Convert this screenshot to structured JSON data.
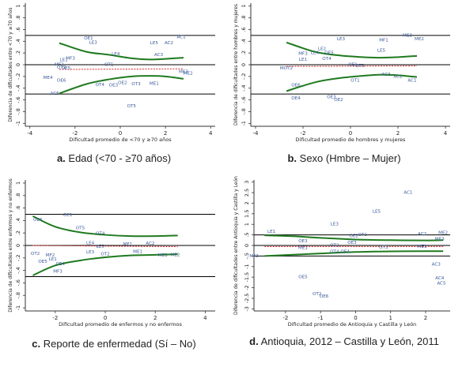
{
  "captions": [
    {
      "letter": "a.",
      "text": "Edad (<70 - ≥70 años)"
    },
    {
      "letter": "b.",
      "text": "Sexo (Hmbre – Mujer)"
    },
    {
      "letter": "c.",
      "text": "Reporte de enfermedad (Sí – No)"
    },
    {
      "letter": "d.",
      "text": "Antioquia, 2012 – Castilla y León, 2011"
    }
  ],
  "colors": {
    "fit_line": "#1f7a1f",
    "zero_dashed": "#d62728",
    "point_label": "#3b5b9a",
    "axis": "#333333",
    "reference_line": "#000000"
  },
  "chart_data": [
    {
      "type": "scatter",
      "title": "",
      "xlabel": "Dificultad promedio de <70 y ≥70 años",
      "ylabel": "Diferencia de dificultades entre <70 y ≥70 años",
      "xlim": [
        -4.2,
        4.2
      ],
      "ylim": [
        -1.05,
        1.05
      ],
      "xticks": [
        -4,
        -2,
        0,
        2,
        4
      ],
      "yticks": [
        -1,
        -0.8,
        -0.6,
        -0.4,
        -0.2,
        0,
        0.2,
        0.4,
        0.6,
        0.8,
        1
      ],
      "ytick_labels": [
        "-1",
        "-.8",
        "-.6",
        "-.4",
        "-.2",
        "0",
        ".2",
        ".4",
        ".6",
        ".8",
        "1"
      ],
      "reference_lines": [
        0.5,
        0,
        -0.5
      ],
      "upper_band": [
        [
          -2.7,
          0.37
        ],
        [
          -1.5,
          0.22
        ],
        [
          -0.5,
          0.17
        ],
        [
          0.5,
          0.11
        ],
        [
          1.3,
          0.09
        ],
        [
          2.0,
          0.1
        ],
        [
          2.8,
          0.12
        ]
      ],
      "lower_band": [
        [
          -2.7,
          -0.49
        ],
        [
          -1.5,
          -0.33
        ],
        [
          -0.5,
          -0.25
        ],
        [
          0.5,
          -0.2
        ],
        [
          1.3,
          -0.19
        ],
        [
          2.0,
          -0.2
        ],
        [
          2.8,
          -0.24
        ]
      ],
      "dashed_fit": [
        [
          -2.7,
          -0.08
        ],
        [
          2.8,
          -0.07
        ]
      ],
      "points": [
        {
          "label": "AC1",
          "x": 2.7,
          "y": 0.47
        },
        {
          "label": "LE5",
          "x": 1.5,
          "y": 0.37
        },
        {
          "label": "AC2",
          "x": 2.15,
          "y": 0.37
        },
        {
          "label": "AC3",
          "x": 1.7,
          "y": 0.17
        },
        {
          "label": "LE3",
          "x": -1.2,
          "y": 0.38
        },
        {
          "label": "OE1",
          "x": -1.4,
          "y": 0.45
        },
        {
          "label": "LE4",
          "x": -0.2,
          "y": 0.18
        },
        {
          "label": "MF3",
          "x": -2.2,
          "y": 0.11
        },
        {
          "label": "LE1",
          "x": -2.5,
          "y": 0.08
        },
        {
          "label": "MF2",
          "x": -2.7,
          "y": 0.0
        },
        {
          "label": "OT2",
          "x": -2.6,
          "y": -0.05
        },
        {
          "label": "OE5",
          "x": -2.4,
          "y": -0.06
        },
        {
          "label": "OT1",
          "x": -0.5,
          "y": 0.0
        },
        {
          "label": "ME2",
          "x": 3.0,
          "y": -0.15
        },
        {
          "label": "ME1",
          "x": 1.5,
          "y": -0.32
        },
        {
          "label": "OT3",
          "x": 0.7,
          "y": -0.33
        },
        {
          "label": "OE2",
          "x": 0.1,
          "y": -0.31
        },
        {
          "label": "OE3",
          "x": -0.3,
          "y": -0.35
        },
        {
          "label": "OT4",
          "x": -0.9,
          "y": -0.34
        },
        {
          "label": "ME4",
          "x": -3.2,
          "y": -0.22
        },
        {
          "label": "OE6",
          "x": -2.6,
          "y": -0.27
        },
        {
          "label": "AC5",
          "x": -2.9,
          "y": -0.49
        },
        {
          "label": "OT5",
          "x": 0.5,
          "y": -0.71
        },
        {
          "label": "ME3",
          "x": 2.8,
          "y": -0.12
        }
      ]
    },
    {
      "type": "scatter",
      "title": "",
      "xlabel": "Dificultad promedio de hombres y mujeres",
      "ylabel": "Diferencia de dificultades entre hombres y mujeres",
      "xlim": [
        -4.2,
        4.2
      ],
      "ylim": [
        -1.05,
        1.05
      ],
      "xticks": [
        -4,
        -2,
        0,
        2,
        4
      ],
      "yticks": [
        -1,
        -0.8,
        -0.6,
        -0.4,
        -0.2,
        0,
        0.2,
        0.4,
        0.6,
        0.8,
        1
      ],
      "ytick_labels": [
        "-1",
        "-.8",
        "-.6",
        "-.4",
        "-.2",
        "0",
        ".2",
        ".4",
        ".6",
        ".8",
        "1"
      ],
      "reference_lines": [
        0.5,
        0,
        -0.5
      ],
      "upper_band": [
        [
          -2.7,
          0.38
        ],
        [
          -1.5,
          0.22
        ],
        [
          -0.5,
          0.16
        ],
        [
          0.5,
          0.13
        ],
        [
          1.3,
          0.12
        ],
        [
          2.0,
          0.13
        ],
        [
          2.8,
          0.15
        ]
      ],
      "lower_band": [
        [
          -2.7,
          -0.45
        ],
        [
          -1.5,
          -0.3
        ],
        [
          -0.5,
          -0.23
        ],
        [
          0.5,
          -0.19
        ],
        [
          1.3,
          -0.17
        ],
        [
          2.0,
          -0.18
        ],
        [
          2.8,
          -0.21
        ]
      ],
      "dashed_fit": [
        [
          -2.7,
          -0.03
        ],
        [
          2.8,
          -0.02
        ]
      ],
      "points": [
        {
          "label": "ME3",
          "x": 2.4,
          "y": 0.5
        },
        {
          "label": "ME2",
          "x": 2.9,
          "y": 0.44
        },
        {
          "label": "MF1",
          "x": 1.4,
          "y": 0.42
        },
        {
          "label": "LE3",
          "x": -0.4,
          "y": 0.44
        },
        {
          "label": "LE5",
          "x": 1.3,
          "y": 0.24
        },
        {
          "label": "LE2",
          "x": -1.2,
          "y": 0.27
        },
        {
          "label": "MF3",
          "x": -2.0,
          "y": 0.19
        },
        {
          "label": "LE4",
          "x": -1.5,
          "y": 0.2
        },
        {
          "label": "LE1",
          "x": -2.0,
          "y": 0.09
        },
        {
          "label": "OT4",
          "x": -1.0,
          "y": 0.1
        },
        {
          "label": "OE5",
          "x": -0.9,
          "y": 0.2
        },
        {
          "label": "MOT2",
          "x": -2.7,
          "y": -0.06
        },
        {
          "label": "OE1",
          "x": 0.1,
          "y": 0.0
        },
        {
          "label": "OT3",
          "x": 0.4,
          "y": -0.02
        },
        {
          "label": "AC3",
          "x": 1.5,
          "y": -0.17
        },
        {
          "label": "AC2",
          "x": 2.0,
          "y": -0.2
        },
        {
          "label": "AC1",
          "x": 2.6,
          "y": -0.27
        },
        {
          "label": "OT1",
          "x": 0.2,
          "y": -0.27
        },
        {
          "label": "OE6",
          "x": -2.3,
          "y": -0.35
        },
        {
          "label": "OE4",
          "x": -2.3,
          "y": -0.57
        },
        {
          "label": "OE3",
          "x": -0.8,
          "y": -0.55
        },
        {
          "label": "OE2",
          "x": -0.5,
          "y": -0.6
        }
      ]
    },
    {
      "type": "scatter",
      "title": "",
      "xlabel": "Dificultad promedio de enfermos y no enfermos",
      "ylabel": "Diferencia de dificultades entre enfermos y no enfermos",
      "xlim": [
        -3.2,
        4.4
      ],
      "ylim": [
        -1.05,
        1.05
      ],
      "xticks": [
        -2,
        0,
        2,
        4
      ],
      "yticks": [
        -1,
        -0.8,
        -0.6,
        -0.4,
        -0.2,
        0,
        0.2,
        0.4,
        0.6,
        0.8,
        1
      ],
      "ytick_labels": [
        "-1",
        "-.8",
        "-.6",
        "-.4",
        "-.2",
        "0",
        ".2",
        ".4",
        ".6",
        ".8",
        "1"
      ],
      "reference_lines": [
        0.5,
        0,
        -0.5
      ],
      "upper_band": [
        [
          -2.9,
          0.47
        ],
        [
          -2.0,
          0.3
        ],
        [
          -1.0,
          0.21
        ],
        [
          0.0,
          0.17
        ],
        [
          1.0,
          0.15
        ],
        [
          2.0,
          0.15
        ],
        [
          2.9,
          0.16
        ]
      ],
      "lower_band": [
        [
          -2.9,
          -0.48
        ],
        [
          -2.0,
          -0.32
        ],
        [
          -1.0,
          -0.24
        ],
        [
          0.0,
          -0.19
        ],
        [
          1.0,
          -0.16
        ],
        [
          2.0,
          -0.15
        ],
        [
          2.9,
          -0.14
        ]
      ],
      "dashed_fit": [
        [
          -2.9,
          0.0
        ],
        [
          2.9,
          -0.02
        ]
      ],
      "points": [
        {
          "label": "OE1",
          "x": -1.5,
          "y": 0.49
        },
        {
          "label": "OE6",
          "x": -2.7,
          "y": 0.41
        },
        {
          "label": "OT5",
          "x": -1.0,
          "y": 0.28
        },
        {
          "label": "OT4",
          "x": -0.2,
          "y": 0.19
        },
        {
          "label": "LE4",
          "x": -0.6,
          "y": 0.04
        },
        {
          "label": "LE5",
          "x": -0.2,
          "y": -0.02
        },
        {
          "label": "MF1",
          "x": 0.9,
          "y": 0.02
        },
        {
          "label": "AC2",
          "x": 1.8,
          "y": 0.03
        },
        {
          "label": "ME1",
          "x": 1.3,
          "y": -0.1
        },
        {
          "label": "LE3",
          "x": -0.6,
          "y": -0.11
        },
        {
          "label": "OT2",
          "x": 0.0,
          "y": -0.14
        },
        {
          "label": "ME3",
          "x": 2.3,
          "y": -0.16
        },
        {
          "label": "ME2",
          "x": 2.8,
          "y": -0.15
        },
        {
          "label": "OT2",
          "x": -2.8,
          "y": -0.13
        },
        {
          "label": "MF2",
          "x": -2.2,
          "y": -0.16
        },
        {
          "label": "LE1",
          "x": -2.1,
          "y": -0.22
        },
        {
          "label": "OE5",
          "x": -2.5,
          "y": -0.26
        },
        {
          "label": "OE4",
          "x": -1.8,
          "y": -0.3
        },
        {
          "label": "MF3",
          "x": -1.9,
          "y": -0.42
        }
      ]
    },
    {
      "type": "scatter",
      "title": "",
      "xlabel": "Dificultad promedio de Antioquia y Castilla y León",
      "ylabel": "Diferencia de dificultades entre Antioquia y Castilla y León",
      "xlim": [
        -2.9,
        2.7
      ],
      "ylim": [
        -3.1,
        3.1
      ],
      "xticks": [
        -2,
        -1,
        0,
        1,
        2
      ],
      "yticks": [
        -3,
        -2.5,
        -2,
        -1.5,
        -1,
        -0.5,
        0,
        0.5,
        1,
        1.5,
        2,
        2.5,
        3
      ],
      "ytick_labels": [
        "-3",
        "-2.5",
        "-2",
        "-1.5",
        "-1",
        "-.5",
        "0",
        ".5",
        "1",
        "1.5",
        "2",
        "2.5",
        "3"
      ],
      "reference_lines": [
        0.5,
        0,
        -0.5
      ],
      "upper_band": [
        [
          -2.6,
          0.48
        ],
        [
          -1.8,
          0.44
        ],
        [
          -1.0,
          0.36
        ],
        [
          0.0,
          0.28
        ],
        [
          1.0,
          0.25
        ],
        [
          2.0,
          0.24
        ],
        [
          2.5,
          0.25
        ]
      ],
      "lower_band": [
        [
          -2.6,
          -0.5
        ],
        [
          -1.8,
          -0.44
        ],
        [
          -1.0,
          -0.38
        ],
        [
          0.0,
          -0.31
        ],
        [
          1.0,
          -0.28
        ],
        [
          2.0,
          -0.27
        ],
        [
          2.5,
          -0.27
        ]
      ],
      "dashed_fit": [
        [
          -2.6,
          -0.05
        ],
        [
          2.5,
          -0.05
        ]
      ],
      "points": [
        {
          "label": "AC1",
          "x": 1.5,
          "y": 2.5
        },
        {
          "label": "LE5",
          "x": 0.6,
          "y": 1.6
        },
        {
          "label": "LE3",
          "x": -0.6,
          "y": 1.0
        },
        {
          "label": "LE1",
          "x": -2.4,
          "y": 0.65
        },
        {
          "label": "AC2",
          "x": 1.9,
          "y": 0.55
        },
        {
          "label": "ME2",
          "x": 2.5,
          "y": 0.6
        },
        {
          "label": "OE2",
          "x": -0.05,
          "y": 0.45
        },
        {
          "label": "OT1",
          "x": 0.2,
          "y": 0.5
        },
        {
          "label": "ME3",
          "x": 2.4,
          "y": 0.3
        },
        {
          "label": "OE3",
          "x": -1.5,
          "y": 0.2
        },
        {
          "label": "OE3",
          "x": -0.1,
          "y": 0.14
        },
        {
          "label": "OT2",
          "x": -0.6,
          "y": 0.0
        },
        {
          "label": "ME1",
          "x": -1.5,
          "y": -0.12
        },
        {
          "label": "MF3",
          "x": -2.9,
          "y": -0.5
        },
        {
          "label": "OT3",
          "x": 0.8,
          "y": -0.1
        },
        {
          "label": "ME1",
          "x": 1.9,
          "y": -0.05
        },
        {
          "label": "OT4",
          "x": -0.6,
          "y": -0.3
        },
        {
          "label": "OE4",
          "x": -0.3,
          "y": -0.3
        },
        {
          "label": "AC3",
          "x": 2.3,
          "y": -0.9
        },
        {
          "label": "AC4",
          "x": 2.4,
          "y": -1.55
        },
        {
          "label": "AC5",
          "x": 2.45,
          "y": -1.8
        },
        {
          "label": "OE5",
          "x": -1.5,
          "y": -1.5
        },
        {
          "label": "OT2",
          "x": -1.1,
          "y": -2.3
        },
        {
          "label": "OE6",
          "x": -0.9,
          "y": -2.4
        }
      ]
    }
  ]
}
